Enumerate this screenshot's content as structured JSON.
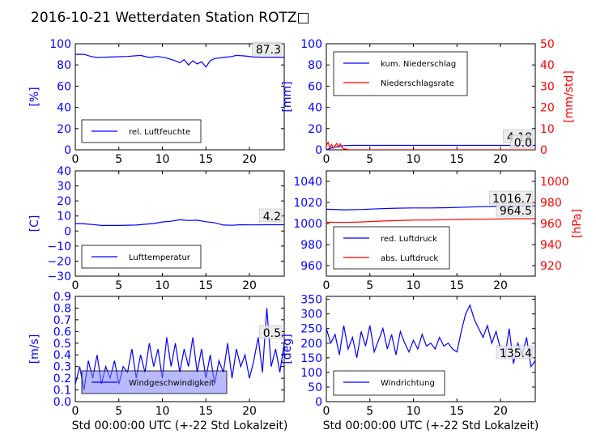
{
  "figure": {
    "title": "2016-10-21 Wetterdaten Station ROTZ□",
    "xlabel": "Std 00:00:00 UTC (+-22 Std Lokalzeit)"
  },
  "colors": {
    "primary": "#0000ff",
    "secondary": "#ff0000",
    "axis": "#000000",
    "fill": "#8080ff"
  },
  "chart_data": [
    {
      "id": "humidity",
      "type": "line",
      "title": "",
      "xlabel": "",
      "ylabel": "[%]",
      "xlim": [
        0,
        24
      ],
      "ylim": [
        0,
        100
      ],
      "xticks": [
        "0",
        "5",
        "10",
        "15",
        "20"
      ],
      "yticks": [
        "0",
        "20",
        "40",
        "60",
        "80",
        "100"
      ],
      "legend": {
        "placement": "lower-left",
        "entries": [
          "rel. Luftfeuchte"
        ]
      },
      "annotations": [
        "87.3"
      ],
      "series": [
        {
          "name": "rel. Luftfeuchte",
          "color": "#0000ff",
          "x": [
            0,
            1,
            1.8,
            2.5,
            4,
            6,
            7.5,
            8.5,
            9.5,
            10.5,
            11.5,
            12,
            12.5,
            13,
            13.5,
            14,
            14.5,
            15,
            15.5,
            16,
            17,
            18,
            18.5,
            19.5,
            20.5,
            21.5,
            22.5,
            24
          ],
          "y": [
            90,
            90,
            88,
            87,
            87.5,
            88,
            89,
            87,
            88,
            86.5,
            84,
            82,
            85,
            80,
            84,
            81,
            83,
            78,
            84,
            86,
            87,
            88,
            89,
            88.5,
            87.5,
            87.3,
            87.3,
            87.3
          ]
        }
      ]
    },
    {
      "id": "precipitation",
      "type": "line",
      "title": "",
      "xlabel": "",
      "ylabel": "[mm]",
      "ylabel_right": "[mm/std]",
      "xlim": [
        0,
        24
      ],
      "ylim": [
        0,
        100
      ],
      "ylim_right": [
        0,
        50
      ],
      "xticks": [
        "0",
        "5",
        "10",
        "15",
        "20"
      ],
      "yticks": [
        "0",
        "20",
        "40",
        "60",
        "80",
        "100"
      ],
      "yticks_right": [
        "0",
        "10",
        "20",
        "30",
        "40",
        "50"
      ],
      "legend": {
        "placement": "upper-left",
        "entries": [
          "kum. Niederschlag",
          "Niederschlagsrate"
        ]
      },
      "annotations": [
        "4.18",
        "0.0"
      ],
      "series": [
        {
          "name": "kum. Niederschlag",
          "color": "#0000ff",
          "axis": "left",
          "x": [
            0,
            0.5,
            1,
            1.5,
            2,
            3,
            24
          ],
          "y": [
            0,
            1.5,
            2.5,
            3.3,
            4,
            4.18,
            4.18
          ]
        },
        {
          "name": "Niederschlagsrate",
          "color": "#ff0000",
          "axis": "right",
          "x": [
            0,
            0.2,
            0.4,
            0.6,
            0.8,
            1,
            1.2,
            1.4,
            1.6,
            1.8,
            2,
            2.3,
            2.6,
            3,
            24
          ],
          "y": [
            2,
            3.5,
            1,
            2.5,
            0.8,
            2,
            3,
            1.2,
            2.8,
            1,
            0.5,
            0.3,
            0,
            0,
            0
          ]
        }
      ]
    },
    {
      "id": "temperature",
      "type": "line",
      "title": "",
      "xlabel": "",
      "ylabel": "[C]",
      "xlim": [
        0,
        24
      ],
      "ylim": [
        -30,
        40
      ],
      "xticks": [
        "0",
        "5",
        "10",
        "15",
        "20"
      ],
      "yticks": [
        "−30",
        "−20",
        "−10",
        "0",
        "10",
        "20",
        "30",
        "40"
      ],
      "legend": {
        "placement": "lower-left",
        "entries": [
          "Lufttemperatur"
        ]
      },
      "annotations": [
        "4.2"
      ],
      "series": [
        {
          "name": "Lufttemperatur",
          "color": "#0000ff",
          "x": [
            0,
            1,
            2,
            3,
            5,
            7,
            9,
            10,
            11,
            12,
            13,
            14,
            15,
            16,
            17,
            18,
            19,
            20,
            24
          ],
          "y": [
            5,
            4.8,
            4.3,
            3.7,
            3.7,
            4,
            5,
            6,
            6.5,
            7.5,
            7,
            7.2,
            6.2,
            5.5,
            4,
            3.8,
            4.2,
            4.1,
            4.2
          ]
        }
      ]
    },
    {
      "id": "pressure",
      "type": "line",
      "title": "",
      "xlabel": "",
      "ylabel": "[hPa]",
      "xlim": [
        0,
        24
      ],
      "ylim": [
        950,
        1050
      ],
      "ylim_right": [
        910,
        1010
      ],
      "xticks": [
        "0",
        "5",
        "10",
        "15",
        "20"
      ],
      "yticks": [
        "960",
        "980",
        "1000",
        "1020",
        "1040"
      ],
      "yticks_right": [
        "920",
        "940",
        "960",
        "980",
        "1000"
      ],
      "legend": {
        "placement": "lower-left",
        "entries": [
          "red. Luftdruck",
          "abs. Luftdruck"
        ]
      },
      "annotations": [
        "1016.7",
        "964.5"
      ],
      "series": [
        {
          "name": "red. Luftdruck",
          "color": "#0000ff",
          "axis": "left",
          "x": [
            0,
            2,
            4,
            6,
            8,
            10,
            12,
            14,
            16,
            18,
            20,
            22,
            24
          ],
          "y": [
            1013.5,
            1013,
            1013.3,
            1014,
            1014.5,
            1014.8,
            1014.8,
            1015,
            1015.5,
            1016,
            1016.5,
            1016.7,
            1016.7
          ]
        },
        {
          "name": "abs. Luftdruck",
          "color": "#ff0000",
          "axis": "right",
          "x": [
            0,
            2,
            4,
            6,
            8,
            10,
            12,
            14,
            16,
            18,
            20,
            22,
            24
          ],
          "y": [
            961.2,
            961,
            961.5,
            962.2,
            962.8,
            963.2,
            963.3,
            963.6,
            963.9,
            964.1,
            964.3,
            964.5,
            964.5
          ]
        }
      ]
    },
    {
      "id": "windspeed",
      "type": "line",
      "title": "",
      "xlabel": "Std 00:00:00 UTC (+-22 Std Lokalzeit)",
      "ylabel": "[m/s]",
      "xlim": [
        0,
        24
      ],
      "ylim": [
        0,
        0.9
      ],
      "xticks": [
        "0",
        "5",
        "10",
        "15",
        "20"
      ],
      "yticks": [
        "0.0",
        "0.1",
        "0.2",
        "0.3",
        "0.4",
        "0.5",
        "0.6",
        "0.7",
        "0.8",
        "0.9"
      ],
      "legend": {
        "placement": "lower-left",
        "entries": [
          "Windgeschwindigkeit"
        ]
      },
      "annotations": [
        "0.5"
      ],
      "series": [
        {
          "name": "Windgeschwindigkeit",
          "color": "#0000ff",
          "x": [
            0,
            0.5,
            1,
            1.5,
            2,
            2.5,
            3,
            3.5,
            4,
            4.5,
            5,
            5.5,
            6,
            6.5,
            7,
            7.5,
            8,
            8.5,
            9,
            9.5,
            10,
            10.5,
            11,
            11.5,
            12,
            12.5,
            13,
            13.5,
            14,
            14.5,
            15,
            15.5,
            16,
            16.5,
            17,
            17.5,
            18,
            18.5,
            19,
            19.5,
            20,
            20.5,
            21,
            21.5,
            22,
            22.5,
            23,
            23.5,
            24
          ],
          "y": [
            0.15,
            0.3,
            0.1,
            0.35,
            0.2,
            0.4,
            0.15,
            0.3,
            0.2,
            0.35,
            0.15,
            0.3,
            0.25,
            0.45,
            0.2,
            0.4,
            0.25,
            0.5,
            0.3,
            0.45,
            0.2,
            0.55,
            0.3,
            0.5,
            0.25,
            0.45,
            0.3,
            0.55,
            0.25,
            0.45,
            0.2,
            0.4,
            0.15,
            0.35,
            0.25,
            0.5,
            0.2,
            0.45,
            0.3,
            0.4,
            0.2,
            0.35,
            0.55,
            0.25,
            0.8,
            0.3,
            0.45,
            0.25,
            0.5
          ]
        }
      ]
    },
    {
      "id": "winddirection",
      "type": "line",
      "title": "",
      "xlabel": "Std 00:00:00 UTC (+-22 Std Lokalzeit)",
      "ylabel": "[deg]",
      "xlim": [
        0,
        24
      ],
      "ylim": [
        0,
        360
      ],
      "xticks": [
        "0",
        "5",
        "10",
        "15",
        "20"
      ],
      "yticks": [
        "0",
        "50",
        "100",
        "150",
        "200",
        "250",
        "300",
        "350"
      ],
      "legend": {
        "placement": "lower-left",
        "entries": [
          "Windrichtung"
        ]
      },
      "annotations": [
        "135.4"
      ],
      "series": [
        {
          "name": "Windrichtung",
          "color": "#0000ff",
          "x": [
            0,
            0.5,
            1,
            1.5,
            2,
            2.5,
            3,
            3.5,
            4,
            4.5,
            5,
            5.5,
            6,
            6.5,
            7,
            7.5,
            8,
            8.5,
            9,
            9.5,
            10,
            10.5,
            11,
            11.5,
            12,
            12.5,
            13,
            13.5,
            14,
            14.5,
            15,
            15.5,
            16,
            16.5,
            17,
            17.5,
            18,
            18.5,
            19,
            19.5,
            20,
            20.5,
            21,
            21.5,
            22,
            22.5,
            23,
            23.5,
            24
          ],
          "y": [
            250,
            200,
            230,
            160,
            260,
            180,
            220,
            150,
            240,
            190,
            260,
            170,
            210,
            250,
            180,
            230,
            160,
            240,
            200,
            170,
            210,
            180,
            230,
            190,
            200,
            180,
            220,
            190,
            200,
            180,
            170,
            240,
            300,
            330,
            280,
            250,
            220,
            260,
            200,
            240,
            180,
            150,
            250,
            130,
            200,
            160,
            220,
            120,
            140
          ]
        }
      ]
    }
  ]
}
